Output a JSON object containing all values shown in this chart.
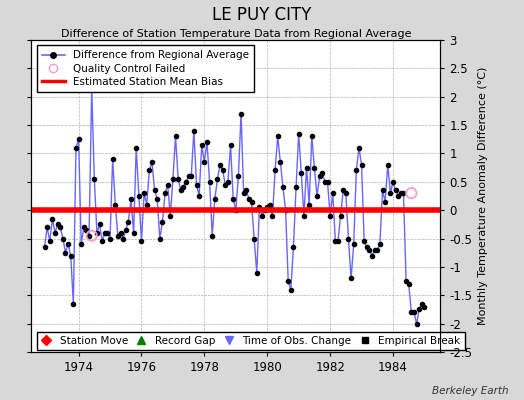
{
  "title": "LE PUY CITY",
  "subtitle": "Difference of Station Temperature Data from Regional Average",
  "ylabel": "Monthly Temperature Anomaly Difference (°C)",
  "background_color": "#d8d8d8",
  "plot_bg_color": "#ffffff",
  "grid_color": "#b0b0b0",
  "bias_value": 0.0,
  "xlim": [
    1972.5,
    1485.5
  ],
  "ylim": [
    -2.5,
    3.0
  ],
  "yticks": [
    -2.5,
    -2,
    -1.5,
    -1,
    -0.5,
    0,
    0.5,
    1,
    1.5,
    2,
    2.5,
    3
  ],
  "ytick_labels": [
    "-2.5",
    "-2",
    "-1.5",
    "-1",
    "-0.5",
    "0",
    "0.5",
    "1",
    "1.5",
    "2",
    "2.5",
    "3"
  ],
  "xticks": [
    1974,
    1976,
    1978,
    1980,
    1982,
    1984
  ],
  "series_color": "#6666ff",
  "series_linewidth": 1.0,
  "marker_color": "#000000",
  "marker_size": 3.0,
  "bias_color": "#ff0000",
  "bias_linewidth": 4.0,
  "qc_fail_color": "#ff99cc",
  "watermark": "Berkeley Earth",
  "data_x": [
    1972.917,
    1973.0,
    1973.083,
    1973.167,
    1973.25,
    1973.333,
    1973.417,
    1973.5,
    1973.583,
    1973.667,
    1973.75,
    1973.833,
    1973.917,
    1974.0,
    1974.083,
    1974.167,
    1974.25,
    1974.333,
    1974.417,
    1974.5,
    1974.583,
    1974.667,
    1974.75,
    1974.833,
    1974.917,
    1975.0,
    1975.083,
    1975.167,
    1975.25,
    1975.333,
    1975.417,
    1975.5,
    1975.583,
    1975.667,
    1975.75,
    1975.833,
    1975.917,
    1976.0,
    1976.083,
    1976.167,
    1976.25,
    1976.333,
    1976.417,
    1976.5,
    1976.583,
    1976.667,
    1976.75,
    1976.833,
    1976.917,
    1977.0,
    1977.083,
    1977.167,
    1977.25,
    1977.333,
    1977.417,
    1977.5,
    1977.583,
    1977.667,
    1977.75,
    1977.833,
    1977.917,
    1978.0,
    1978.083,
    1978.167,
    1978.25,
    1978.333,
    1978.417,
    1978.5,
    1978.583,
    1978.667,
    1978.75,
    1978.833,
    1978.917,
    1979.0,
    1979.083,
    1979.167,
    1979.25,
    1979.333,
    1979.417,
    1979.5,
    1979.583,
    1979.667,
    1979.75,
    1979.833,
    1979.917,
    1980.0,
    1980.083,
    1980.167,
    1980.25,
    1980.333,
    1980.417,
    1980.5,
    1980.583,
    1980.667,
    1980.75,
    1980.833,
    1980.917,
    1981.0,
    1981.083,
    1981.167,
    1981.25,
    1981.333,
    1981.417,
    1981.5,
    1981.583,
    1981.667,
    1981.75,
    1981.833,
    1981.917,
    1982.0,
    1982.083,
    1982.167,
    1982.25,
    1982.333,
    1982.417,
    1982.5,
    1982.583,
    1982.667,
    1982.75,
    1982.833,
    1982.917,
    1983.0,
    1983.083,
    1983.167,
    1983.25,
    1983.333,
    1983.417,
    1983.5,
    1983.583,
    1983.667,
    1983.75,
    1983.833,
    1983.917,
    1984.0,
    1984.083,
    1984.167,
    1984.25,
    1984.333,
    1984.417,
    1984.5,
    1984.583,
    1984.667,
    1984.75,
    1984.833,
    1984.917,
    1985.0
  ],
  "data_y": [
    -0.65,
    -0.3,
    -0.55,
    -0.15,
    -0.4,
    -0.25,
    -0.3,
    -0.5,
    -0.75,
    -0.6,
    -0.8,
    -1.65,
    1.1,
    1.25,
    -0.6,
    -0.3,
    -0.35,
    -0.45,
    2.15,
    0.55,
    -0.4,
    -0.25,
    -0.55,
    -0.4,
    -0.4,
    -0.5,
    0.9,
    0.1,
    -0.45,
    -0.4,
    -0.5,
    -0.35,
    -0.2,
    0.2,
    -0.4,
    1.1,
    0.25,
    -0.55,
    0.3,
    0.1,
    0.7,
    0.85,
    0.35,
    0.2,
    -0.5,
    -0.2,
    0.3,
    0.45,
    -0.1,
    0.55,
    1.3,
    0.55,
    0.35,
    0.4,
    0.5,
    0.6,
    0.6,
    1.4,
    0.45,
    0.25,
    1.15,
    0.85,
    1.2,
    0.5,
    -0.45,
    0.2,
    0.55,
    0.8,
    0.7,
    0.45,
    0.5,
    1.15,
    0.2,
    0.0,
    0.6,
    1.7,
    0.3,
    0.35,
    0.2,
    0.15,
    -0.5,
    -1.1,
    0.05,
    -0.1,
    0.0,
    0.05,
    0.1,
    -0.1,
    0.7,
    1.3,
    0.85,
    0.4,
    0.0,
    -1.25,
    -1.4,
    -0.65,
    0.4,
    1.35,
    0.65,
    -0.1,
    0.75,
    0.1,
    1.3,
    0.75,
    0.25,
    0.6,
    0.65,
    0.5,
    0.5,
    -0.1,
    0.3,
    -0.55,
    -0.55,
    -0.1,
    0.35,
    0.3,
    -0.5,
    -1.2,
    -0.6,
    0.7,
    1.1,
    0.8,
    -0.55,
    -0.65,
    -0.7,
    -0.8,
    -0.7,
    -0.7,
    -0.6,
    0.35,
    0.15,
    0.8,
    0.3,
    0.5,
    0.35,
    0.25,
    0.3,
    0.3,
    -1.25,
    -1.3,
    -1.8,
    -1.8,
    -2.0,
    -1.75,
    -1.65,
    -1.7
  ],
  "qc_fail_points": [
    [
      1974.417,
      -0.45
    ],
    [
      1984.583,
      0.3
    ]
  ]
}
